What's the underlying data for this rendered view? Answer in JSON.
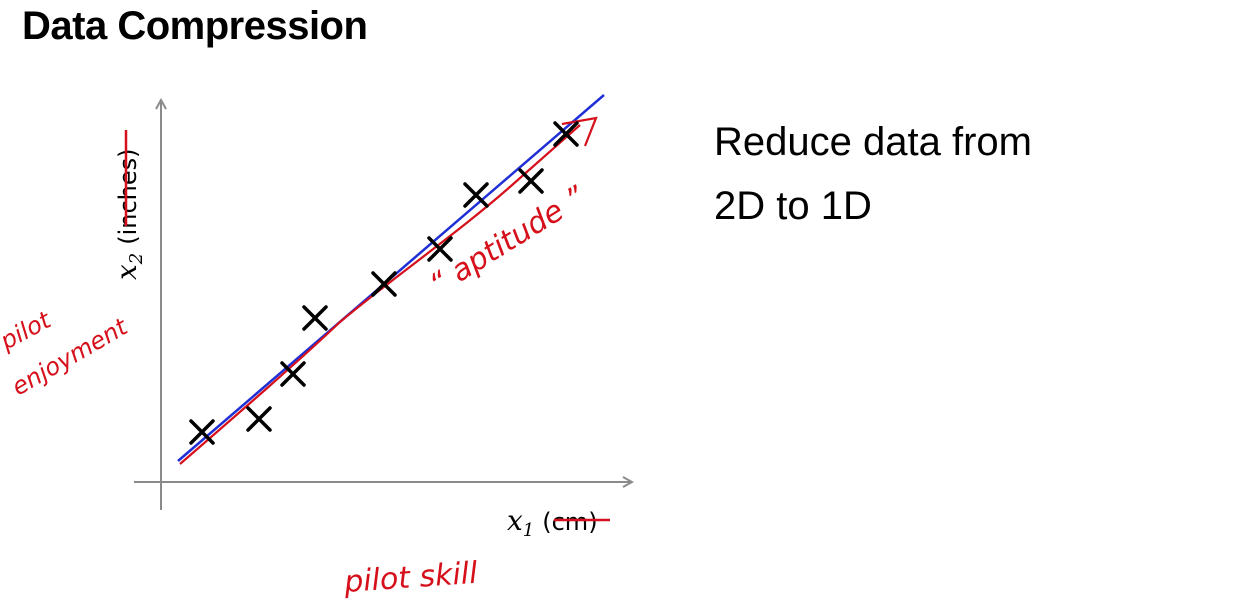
{
  "slide": {
    "title": "Data Compression",
    "bullet_line1": "Reduce data from",
    "bullet_line2": "2D to 1D"
  },
  "diagram": {
    "x_axis": {
      "var": "x",
      "sub": "1",
      "unit": "(cm)"
    },
    "y_axis": {
      "var": "x",
      "sub": "2",
      "unit": "(inches)"
    },
    "annotations": {
      "x_handwritten": "pilot   skill",
      "y_handwritten_line1": "pilot",
      "y_handwritten_line2": "enjoyment",
      "line_label": "“ aptitude ”"
    },
    "colors": {
      "axis": "#8a8a8a",
      "points": "#000000",
      "fit_line": "#1f2fd6",
      "ink": "#d6101a"
    }
  }
}
